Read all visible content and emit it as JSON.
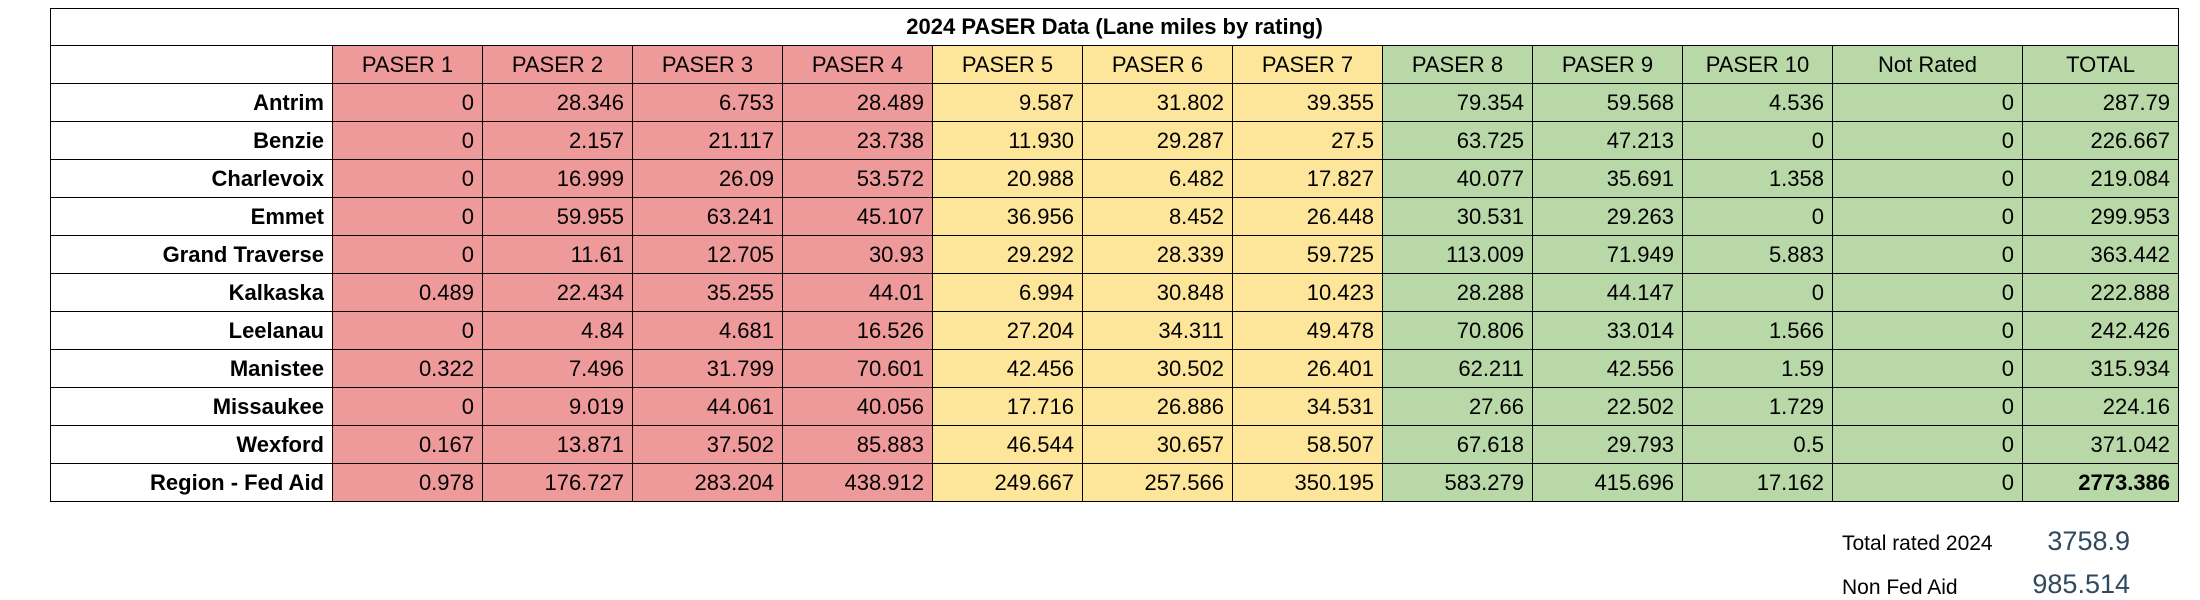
{
  "title": "2024 PASER Data (Lane miles by rating)",
  "columns": [
    "",
    "PASER 1",
    "PASER 2",
    "PASER 3",
    "PASER 4",
    "PASER 5",
    "PASER 6",
    "PASER 7",
    "PASER 8",
    "PASER 9",
    "PASER 10",
    "Not Rated",
    "TOTAL"
  ],
  "column_colors": {
    "red": "#ee9a9b",
    "yellow": "#fde69a",
    "green": "#b8d8a7"
  },
  "rows": [
    {
      "name": "Antrim",
      "values": [
        "0",
        "28.346",
        "6.753",
        "28.489",
        "9.587",
        "31.802",
        "39.355",
        "79.354",
        "59.568",
        "4.536",
        "0",
        "287.79"
      ]
    },
    {
      "name": "Benzie",
      "values": [
        "0",
        "2.157",
        "21.117",
        "23.738",
        "11.930",
        "29.287",
        "27.5",
        "63.725",
        "47.213",
        "0",
        "0",
        "226.667"
      ]
    },
    {
      "name": "Charlevoix",
      "values": [
        "0",
        "16.999",
        "26.09",
        "53.572",
        "20.988",
        "6.482",
        "17.827",
        "40.077",
        "35.691",
        "1.358",
        "0",
        "219.084"
      ]
    },
    {
      "name": "Emmet",
      "values": [
        "0",
        "59.955",
        "63.241",
        "45.107",
        "36.956",
        "8.452",
        "26.448",
        "30.531",
        "29.263",
        "0",
        "0",
        "299.953"
      ]
    },
    {
      "name": "Grand Traverse",
      "values": [
        "0",
        "11.61",
        "12.705",
        "30.93",
        "29.292",
        "28.339",
        "59.725",
        "113.009",
        "71.949",
        "5.883",
        "0",
        "363.442"
      ]
    },
    {
      "name": "Kalkaska",
      "values": [
        "0.489",
        "22.434",
        "35.255",
        "44.01",
        "6.994",
        "30.848",
        "10.423",
        "28.288",
        "44.147",
        "0",
        "0",
        "222.888"
      ]
    },
    {
      "name": "Leelanau",
      "values": [
        "0",
        "4.84",
        "4.681",
        "16.526",
        "27.204",
        "34.311",
        "49.478",
        "70.806",
        "33.014",
        "1.566",
        "0",
        "242.426"
      ]
    },
    {
      "name": "Manistee",
      "values": [
        "0.322",
        "7.496",
        "31.799",
        "70.601",
        "42.456",
        "30.502",
        "26.401",
        "62.211",
        "42.556",
        "1.59",
        "0",
        "315.934"
      ]
    },
    {
      "name": "Missaukee",
      "values": [
        "0",
        "9.019",
        "44.061",
        "40.056",
        "17.716",
        "26.886",
        "34.531",
        "27.66",
        "22.502",
        "1.729",
        "0",
        "224.16"
      ]
    },
    {
      "name": "Wexford",
      "values": [
        "0.167",
        "13.871",
        "37.502",
        "85.883",
        "46.544",
        "30.657",
        "58.507",
        "67.618",
        "29.793",
        "0.5",
        "0",
        "371.042"
      ]
    },
    {
      "name": "Region - Fed Aid",
      "values": [
        "0.978",
        "176.727",
        "283.204",
        "438.912",
        "249.667",
        "257.566",
        "350.195",
        "583.279",
        "415.696",
        "17.162",
        "0",
        "2773.386"
      ]
    }
  ],
  "summary": {
    "total_rated_label": "Total rated 2024",
    "total_rated_value": "3758.9",
    "non_fed_label": "Non Fed Aid",
    "non_fed_value": "985.514"
  }
}
